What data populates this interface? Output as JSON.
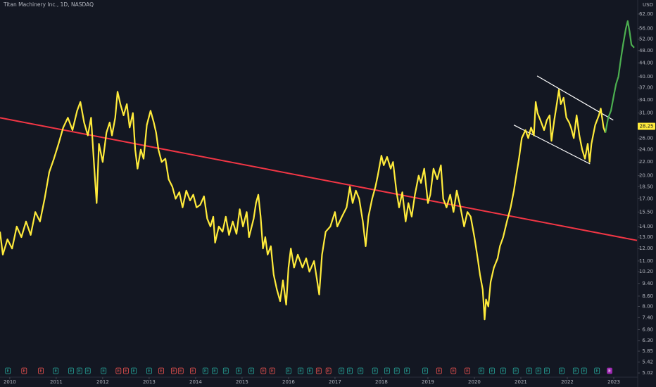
{
  "chart_data": {
    "type": "line",
    "title": "Titan Machinery Inc., 1D, NASDAQ",
    "y_unit": "USD",
    "log_scale": true,
    "grid": false,
    "xlim": [
      2009.79,
      2023.5
    ],
    "xticks": [
      2010,
      2011,
      2012,
      2013,
      2014,
      2015,
      2016,
      2017,
      2018,
      2019,
      2020,
      2021,
      2022,
      2023
    ],
    "ylim": [
      4.9,
      68.4
    ],
    "yticks": [
      {
        "value": 62,
        "label": "62.00"
      },
      {
        "value": 56,
        "label": "56.00"
      },
      {
        "value": 52,
        "label": "52.00"
      },
      {
        "value": 48,
        "label": "48.00"
      },
      {
        "value": 44,
        "label": "44.00"
      },
      {
        "value": 40,
        "label": "40.00"
      },
      {
        "value": 37,
        "label": "37.00"
      },
      {
        "value": 34,
        "label": "34.00"
      },
      {
        "value": 31,
        "label": "31.00"
      },
      {
        "value": 26,
        "label": "26.00"
      },
      {
        "value": 24,
        "label": "24.00"
      },
      {
        "value": 22,
        "label": "22.00"
      },
      {
        "value": 20,
        "label": "20.00"
      },
      {
        "value": 18.5,
        "label": "18.50"
      },
      {
        "value": 17,
        "label": "17.00"
      },
      {
        "value": 15.5,
        "label": "15.50"
      },
      {
        "value": 14,
        "label": "14.00"
      },
      {
        "value": 13,
        "label": "13.00"
      },
      {
        "value": 12,
        "label": "12.00"
      },
      {
        "value": 11,
        "label": "11.00"
      },
      {
        "value": 10.2,
        "label": "10.20"
      },
      {
        "value": 9.4,
        "label": "9.40"
      },
      {
        "value": 8.6,
        "label": "8.60"
      },
      {
        "value": 8,
        "label": "8.00"
      },
      {
        "value": 7.4,
        "label": "7.40"
      },
      {
        "value": 6.8,
        "label": "6.80"
      },
      {
        "value": 6.3,
        "label": "6.30"
      },
      {
        "value": 5.85,
        "label": "5.85"
      },
      {
        "value": 5.42,
        "label": "5.42"
      },
      {
        "value": 5.02,
        "label": "5.02"
      }
    ],
    "price_label": {
      "value": 28.25,
      "label": "28.25",
      "color": "#ffeb3b"
    },
    "series": [
      {
        "color": "#ffeb3b",
        "x": [
          2009.79,
          2009.85,
          2009.95,
          2010.05,
          2010.15,
          2010.25,
          2010.35,
          2010.45,
          2010.55,
          2010.65,
          2010.75,
          2010.85,
          2010.95,
          2011.05,
          2011.15,
          2011.25,
          2011.35,
          2011.45,
          2011.52,
          2011.6,
          2011.68,
          2011.75,
          2011.82,
          2011.87,
          2011.92,
          2012.0,
          2012.08,
          2012.15,
          2012.2,
          2012.27,
          2012.32,
          2012.38,
          2012.45,
          2012.52,
          2012.58,
          2012.65,
          2012.7,
          2012.75,
          2012.82,
          2012.88,
          2012.95,
          2013.03,
          2013.1,
          2013.15,
          2013.2,
          2013.27,
          2013.35,
          2013.42,
          2013.5,
          2013.57,
          2013.65,
          2013.72,
          2013.8,
          2013.88,
          2013.95,
          2014.02,
          2014.1,
          2014.18,
          2014.25,
          2014.32,
          2014.38,
          2014.42,
          2014.5,
          2014.58,
          2014.65,
          2014.72,
          2014.8,
          2014.88,
          2014.95,
          2015.02,
          2015.1,
          2015.15,
          2015.25,
          2015.3,
          2015.35,
          2015.4,
          2015.45,
          2015.5,
          2015.55,
          2015.62,
          2015.68,
          2015.75,
          2015.82,
          2015.88,
          2015.95,
          2016.0,
          2016.05,
          2016.12,
          2016.2,
          2016.3,
          2016.38,
          2016.45,
          2016.55,
          2016.62,
          2016.66,
          2016.72,
          2016.8,
          2016.9,
          2017.0,
          2017.05,
          2017.15,
          2017.25,
          2017.32,
          2017.38,
          2017.45,
          2017.52,
          2017.6,
          2017.66,
          2017.72,
          2017.8,
          2017.87,
          2017.92,
          2018.0,
          2018.05,
          2018.12,
          2018.2,
          2018.25,
          2018.32,
          2018.38,
          2018.45,
          2018.52,
          2018.58,
          2018.65,
          2018.72,
          2018.8,
          2018.85,
          2018.92,
          2019.0,
          2019.05,
          2019.12,
          2019.2,
          2019.28,
          2019.33,
          2019.4,
          2019.48,
          2019.55,
          2019.62,
          2019.7,
          2019.78,
          2019.85,
          2019.92,
          2020.0,
          2020.08,
          2020.12,
          2020.18,
          2020.22,
          2020.25,
          2020.3,
          2020.35,
          2020.42,
          2020.5,
          2020.55,
          2020.62,
          2020.7,
          2020.78,
          2020.85,
          2020.9,
          2020.96,
          2021.02,
          2021.1,
          2021.16,
          2021.22,
          2021.28,
          2021.32,
          2021.36,
          2021.42,
          2021.5,
          2021.56,
          2021.62,
          2021.66,
          2021.72,
          2021.78,
          2021.82,
          2021.86,
          2021.92,
          2021.98,
          2022.04,
          2022.08,
          2022.14,
          2022.2,
          2022.26,
          2022.32,
          2022.38,
          2022.44,
          2022.48,
          2022.52,
          2022.6,
          2022.68,
          2022.72,
          2022.78,
          2022.82
        ],
        "values": [
          13.5,
          11.5,
          12.8,
          12.0,
          14.0,
          13.0,
          14.5,
          13.2,
          15.5,
          14.5,
          17.0,
          20.5,
          22.5,
          25.0,
          28.0,
          30.0,
          27.5,
          31.5,
          33.5,
          29.0,
          26.5,
          30.0,
          21.0,
          16.5,
          25.0,
          22.0,
          27.0,
          29.0,
          26.5,
          30.0,
          36.0,
          33.0,
          30.5,
          33.0,
          28.0,
          31.0,
          24.0,
          21.0,
          24.0,
          22.5,
          28.5,
          31.5,
          29.0,
          27.0,
          24.0,
          22.0,
          22.5,
          19.5,
          18.5,
          17.0,
          17.8,
          16.0,
          18.0,
          16.8,
          17.5,
          16.0,
          16.3,
          17.3,
          14.8,
          14.0,
          15.0,
          12.5,
          14.0,
          13.5,
          15.0,
          13.2,
          14.5,
          13.3,
          15.8,
          14.0,
          15.5,
          13.0,
          14.8,
          16.5,
          17.5,
          15.0,
          12.0,
          13.0,
          11.5,
          12.2,
          10.0,
          9.0,
          8.3,
          9.6,
          8.1,
          10.5,
          12.0,
          10.5,
          11.5,
          10.5,
          11.2,
          10.2,
          11.0,
          9.5,
          8.7,
          11.5,
          13.5,
          14.0,
          15.5,
          14.0,
          15.0,
          16.0,
          18.5,
          16.5,
          18.0,
          17.0,
          14.5,
          12.2,
          15.0,
          17.0,
          18.5,
          20.0,
          23.0,
          21.5,
          22.8,
          21.0,
          22.0,
          18.0,
          16.0,
          17.8,
          14.5,
          16.5,
          15.0,
          17.5,
          20.0,
          19.0,
          21.0,
          16.5,
          17.5,
          21.0,
          19.5,
          21.5,
          17.0,
          16.0,
          17.5,
          15.5,
          18.0,
          16.0,
          14.0,
          15.5,
          15.0,
          13.0,
          11.0,
          10.0,
          9.0,
          7.3,
          8.4,
          8.0,
          9.5,
          10.5,
          11.2,
          12.2,
          13.0,
          14.5,
          16.0,
          18.0,
          20.0,
          22.5,
          26.0,
          27.5,
          26.0,
          28.0,
          26.5,
          33.5,
          31.0,
          29.5,
          27.5,
          29.5,
          30.5,
          25.5,
          29.5,
          33.5,
          36.5,
          33.0,
          34.5,
          30.0,
          29.0,
          28.0,
          26.0,
          30.5,
          26.5,
          24.0,
          22.5,
          25.0,
          22.0,
          25.0,
          28.5,
          30.5,
          32.0,
          28.0,
          27.0
        ]
      },
      {
        "color": "#4caf50",
        "x": [
          2022.82,
          2022.88,
          2022.94,
          2023.0,
          2023.05,
          2023.1,
          2023.15,
          2023.2,
          2023.26,
          2023.3,
          2023.34,
          2023.38,
          2023.44
        ],
        "values": [
          27.0,
          30.0,
          31.5,
          35.0,
          38.0,
          40.0,
          45.0,
          50.0,
          56.0,
          59.0,
          55.0,
          50.0,
          49.0
        ]
      }
    ],
    "lines": [
      {
        "color": "#f23645",
        "x": [
          2009.79,
          2023.5
        ],
        "values": [
          30.0,
          12.7
        ]
      },
      {
        "color": "#ffffff",
        "x": [
          2021.35,
          2022.99
        ],
        "values": [
          40.2,
          29.5
        ]
      },
      {
        "color": "#ffffff",
        "x": [
          2020.85,
          2022.49
        ],
        "values": [
          28.5,
          21.7
        ]
      }
    ],
    "earnings": {
      "label": "E",
      "x": [
        2009.96,
        2010.31,
        2010.67,
        2010.99,
        2011.32,
        2011.5,
        2011.68,
        2012.02,
        2012.34,
        2012.5,
        2012.67,
        2013.0,
        2013.26,
        2013.53,
        2013.68,
        2013.94,
        2014.21,
        2014.41,
        2014.65,
        2014.93,
        2015.2,
        2015.46,
        2015.65,
        2016.0,
        2016.26,
        2016.46,
        2016.65,
        2016.86,
        2017.14,
        2017.32,
        2017.55,
        2017.86,
        2018.12,
        2018.33,
        2018.55,
        2018.94,
        2019.24,
        2019.55,
        2019.85,
        2020.15,
        2020.38,
        2020.62,
        2020.89,
        2021.18,
        2021.38,
        2021.56,
        2021.88,
        2022.18,
        2022.36,
        2022.64,
        2022.91
      ],
      "colors": [
        "#26a69a",
        "#ef5350",
        "#ef5350",
        "#26a69a",
        "#26a69a",
        "#26a69a",
        "#26a69a",
        "#26a69a",
        "#ef5350",
        "#ef5350",
        "#26a69a",
        "#26a69a",
        "#ef5350",
        "#ef5350",
        "#ef5350",
        "#ef5350",
        "#26a69a",
        "#26a69a",
        "#26a69a",
        "#26a69a",
        "#26a69a",
        "#ef5350",
        "#ef5350",
        "#26a69a",
        "#26a69a",
        "#26a69a",
        "#ef5350",
        "#ef5350",
        "#26a69a",
        "#26a69a",
        "#26a69a",
        "#26a69a",
        "#26a69a",
        "#26a69a",
        "#26a69a",
        "#26a69a",
        "#ef5350",
        "#ef5350",
        "#ef5350",
        "#26a69a",
        "#26a69a",
        "#26a69a",
        "#26a69a",
        "#26a69a",
        "#26a69a",
        "#26a69a",
        "#26a69a",
        "#26a69a",
        "#26a69a",
        "#26a69a",
        "#9c27b0"
      ]
    }
  }
}
